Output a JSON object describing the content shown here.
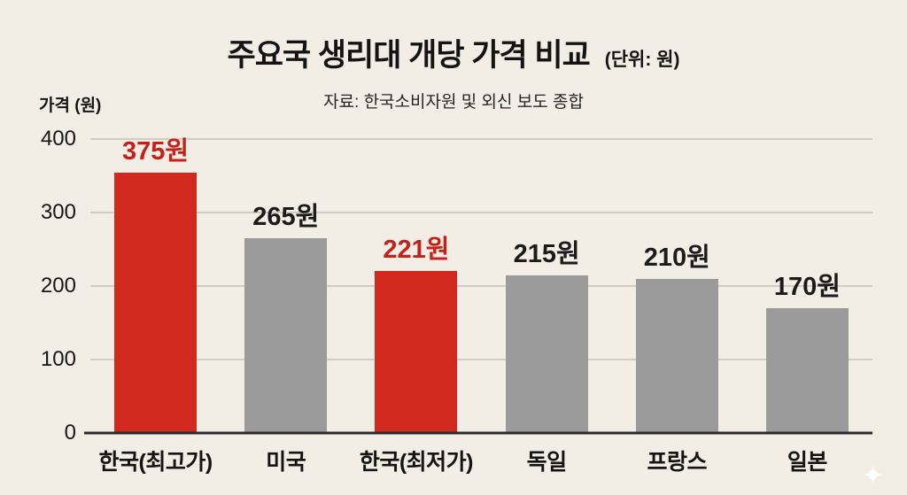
{
  "page": {
    "background": "#f2eee5"
  },
  "header": {
    "title": "주요국 생리대 개당 가격 비교",
    "title_unit": "(단위: 원)",
    "subtitle": "자료: 한국소비자원 및 외신 보도 종합"
  },
  "chart_data": {
    "type": "bar",
    "title": "주요국 생리대 개당 가격 비교",
    "unit_note": "(단위: 원)",
    "source": "자료: 한국소비자원 및 외신 보도 종합",
    "xlabel": "",
    "ylabel": "가격 (원)",
    "ylim": [
      0,
      400
    ],
    "yticks": [
      0,
      100,
      200,
      300,
      400
    ],
    "grid": true,
    "legend": false,
    "categories": [
      "한국(최고가)",
      "미국",
      "한국(최저가)",
      "독일",
      "프랑스",
      "일본"
    ],
    "values": [
      375,
      265,
      221,
      215,
      210,
      170
    ],
    "value_labels": [
      "375원",
      "265원",
      "221원",
      "215원",
      "210원",
      "170원"
    ],
    "highlighted": [
      true,
      false,
      true,
      false,
      false,
      false
    ],
    "bar_color_default": "#9b9b9b",
    "bar_color_highlight": "#d1291d",
    "value_color_default": "#1b1b1b",
    "value_color_highlight": "#c6201a"
  },
  "decor": {
    "sparkle_icon": "✦"
  }
}
